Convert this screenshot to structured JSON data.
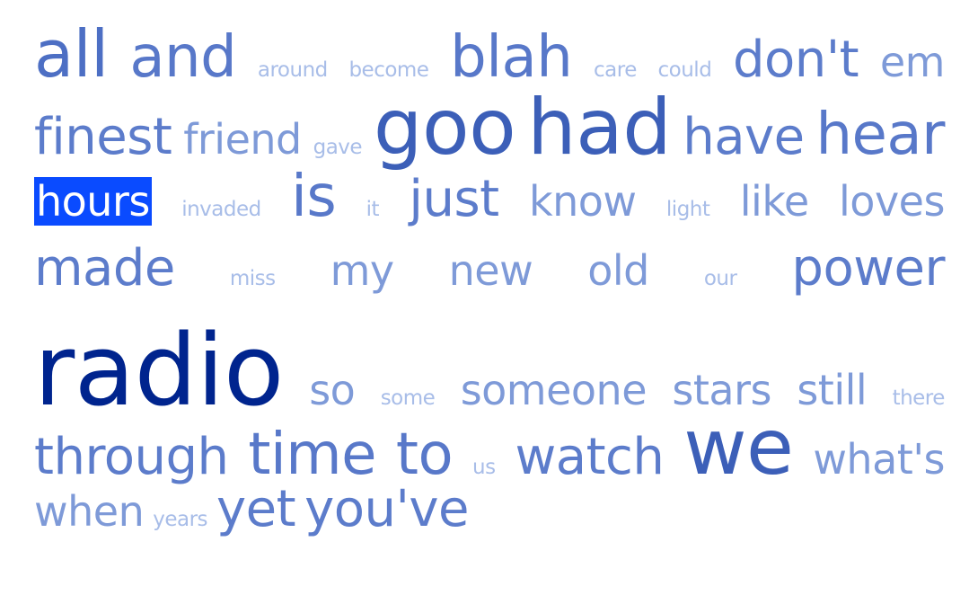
{
  "cloud": {
    "lines": [
      [
        {
          "text": "all",
          "tier": "s5"
        },
        {
          "text": "and",
          "tier": "s8"
        },
        {
          "text": "around",
          "tier": "s1"
        },
        {
          "text": "become",
          "tier": "s1"
        },
        {
          "text": "blah",
          "tier": "s8"
        },
        {
          "text": "care",
          "tier": "s1"
        },
        {
          "text": "could",
          "tier": "s1"
        },
        {
          "text": "don't",
          "tier": "s4"
        },
        {
          "text": "em",
          "tier": "s3"
        }
      ],
      [
        {
          "text": "finest",
          "tier": "s4"
        },
        {
          "text": "friend",
          "tier": "s3"
        },
        {
          "text": "gave",
          "tier": "s1"
        },
        {
          "text": "goo",
          "tier": "s7"
        },
        {
          "text": "had",
          "tier": "s7"
        },
        {
          "text": "have",
          "tier": "s4"
        },
        {
          "text": "hear",
          "tier": "s8"
        }
      ],
      [
        {
          "text": "hours",
          "tier": "s3",
          "selected": true
        },
        {
          "text": "invaded",
          "tier": "s1"
        },
        {
          "text": "is",
          "tier": "s8"
        },
        {
          "text": "it",
          "tier": "s1"
        },
        {
          "text": "just",
          "tier": "s4"
        },
        {
          "text": "know",
          "tier": "s3"
        },
        {
          "text": "light",
          "tier": "s1"
        },
        {
          "text": "like",
          "tier": "s3"
        },
        {
          "text": "loves",
          "tier": "s3"
        }
      ],
      [
        {
          "text": "made",
          "tier": "s4"
        },
        {
          "text": "miss",
          "tier": "s1"
        },
        {
          "text": "my",
          "tier": "s3"
        },
        {
          "text": "new",
          "tier": "s3"
        },
        {
          "text": "old",
          "tier": "s3"
        },
        {
          "text": "our",
          "tier": "s1"
        },
        {
          "text": "power",
          "tier": "s4"
        }
      ],
      [
        {
          "text": "radio",
          "tier": "s6"
        },
        {
          "text": "so",
          "tier": "s3"
        },
        {
          "text": "some",
          "tier": "s1"
        },
        {
          "text": "someone",
          "tier": "s3"
        },
        {
          "text": "stars",
          "tier": "s3"
        },
        {
          "text": "still",
          "tier": "s3"
        },
        {
          "text": "there",
          "tier": "s1"
        }
      ],
      [
        {
          "text": "through",
          "tier": "s4"
        },
        {
          "text": "time",
          "tier": "s8"
        },
        {
          "text": "to",
          "tier": "s8"
        },
        {
          "text": "us",
          "tier": "s1"
        },
        {
          "text": "watch",
          "tier": "s4"
        },
        {
          "text": "we",
          "tier": "s7"
        },
        {
          "text": "what's",
          "tier": "s3"
        }
      ],
      [
        {
          "text": "when",
          "tier": "s3"
        },
        {
          "text": "years",
          "tier": "s1"
        },
        {
          "text": "yet",
          "tier": "s4"
        },
        {
          "text": "you've",
          "tier": "s4"
        }
      ]
    ]
  },
  "colors": {
    "selected_background": "#0a4bff",
    "radio": "#00248e",
    "light": "#a8bde8"
  }
}
